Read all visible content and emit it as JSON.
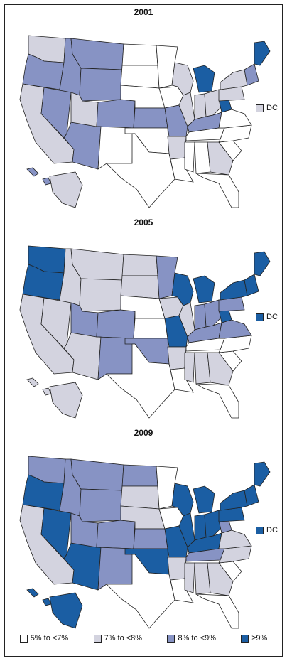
{
  "colors": {
    "lt7": "#ffffff",
    "7to8": "#d3d3df",
    "8to9": "#8793c4",
    "ge9": "#1b5ea3",
    "outline": "#222222"
  },
  "legend": [
    {
      "key": "lt7",
      "label": "5% to <7%"
    },
    {
      "key": "7to8",
      "label": "7% to <8%"
    },
    {
      "key": "8to9",
      "label": "8% to <9%"
    },
    {
      "key": "ge9",
      "label": "≥9%"
    }
  ],
  "dc_label": "DC",
  "maps": [
    {
      "year": "2001",
      "dc": "7to8",
      "states": {
        "WA": "7to8",
        "OR": "8to9",
        "CA": "7to8",
        "ID": "8to9",
        "NV": "8to9",
        "AZ": "8to9",
        "UT": "7to8",
        "MT": "8to9",
        "WY": "8to9",
        "CO": "8to9",
        "NM": "lt7",
        "ND": "lt7",
        "SD": "lt7",
        "NE": "lt7",
        "KS": "8to9",
        "OK": "lt7",
        "TX": "lt7",
        "MN": "lt7",
        "IA": "lt7",
        "MO": "8to9",
        "AR": "7to8",
        "LA": "lt7",
        "WI": "7to8",
        "IL": "7to8",
        "MI": "ge9",
        "IN": "7to8",
        "OH": "7to8",
        "KY": "8to9",
        "TN": "lt7",
        "MS": "lt7",
        "AL": "lt7",
        "GA": "7to8",
        "FL": "lt7",
        "SC": "lt7",
        "NC": "lt7",
        "VA": "lt7",
        "WV": "ge9",
        "PA": "7to8",
        "NY": "7to8",
        "NE_R": "8to9",
        "ME": "ge9",
        "AK": "7to8",
        "HI": "8to9"
      }
    },
    {
      "year": "2005",
      "dc": "ge9",
      "states": {
        "WA": "ge9",
        "OR": "ge9",
        "CA": "7to8",
        "ID": "7to8",
        "NV": "7to8",
        "AZ": "7to8",
        "UT": "8to9",
        "MT": "7to8",
        "WY": "7to8",
        "CO": "8to9",
        "NM": "8to9",
        "ND": "7to8",
        "SD": "7to8",
        "NE": "lt7",
        "KS": "lt7",
        "OK": "8to9",
        "TX": "lt7",
        "MN": "8to9",
        "IA": "7to8",
        "MO": "ge9",
        "AR": "7to8",
        "LA": "lt7",
        "WI": "ge9",
        "IL": "7to8",
        "MI": "ge9",
        "IN": "8to9",
        "OH": "8to9",
        "KY": "8to9",
        "TN": "lt7",
        "MS": "7to8",
        "AL": "7to8",
        "GA": "7to8",
        "FL": "lt7",
        "SC": "lt7",
        "NC": "lt7",
        "VA": "8to9",
        "WV": "ge9",
        "PA": "8to9",
        "NY": "ge9",
        "NE_R": "ge9",
        "ME": "ge9",
        "AK": "7to8",
        "HI": "7to8"
      }
    },
    {
      "year": "2009",
      "dc": "ge9",
      "states": {
        "WA": "8to9",
        "OR": "ge9",
        "CA": "7to8",
        "ID": "8to9",
        "NV": "ge9",
        "AZ": "ge9",
        "UT": "8to9",
        "MT": "8to9",
        "WY": "8to9",
        "CO": "8to9",
        "NM": "8to9",
        "ND": "8to9",
        "SD": "7to8",
        "NE": "7to8",
        "KS": "8to9",
        "OK": "ge9",
        "TX": "lt7",
        "MN": "lt7",
        "IA": "lt7",
        "MO": "ge9",
        "AR": "7to8",
        "LA": "lt7",
        "WI": "ge9",
        "IL": "ge9",
        "MI": "ge9",
        "IN": "ge9",
        "OH": "ge9",
        "KY": "ge9",
        "TN": "8to9",
        "MS": "7to8",
        "AL": "7to8",
        "GA": "7to8",
        "FL": "lt7",
        "SC": "lt7",
        "NC": "7to8",
        "VA": "7to8",
        "WV": "8to9",
        "PA": "ge9",
        "NY": "ge9",
        "NE_R": "ge9",
        "ME": "ge9",
        "AK": "ge9",
        "HI": "ge9"
      }
    }
  ]
}
